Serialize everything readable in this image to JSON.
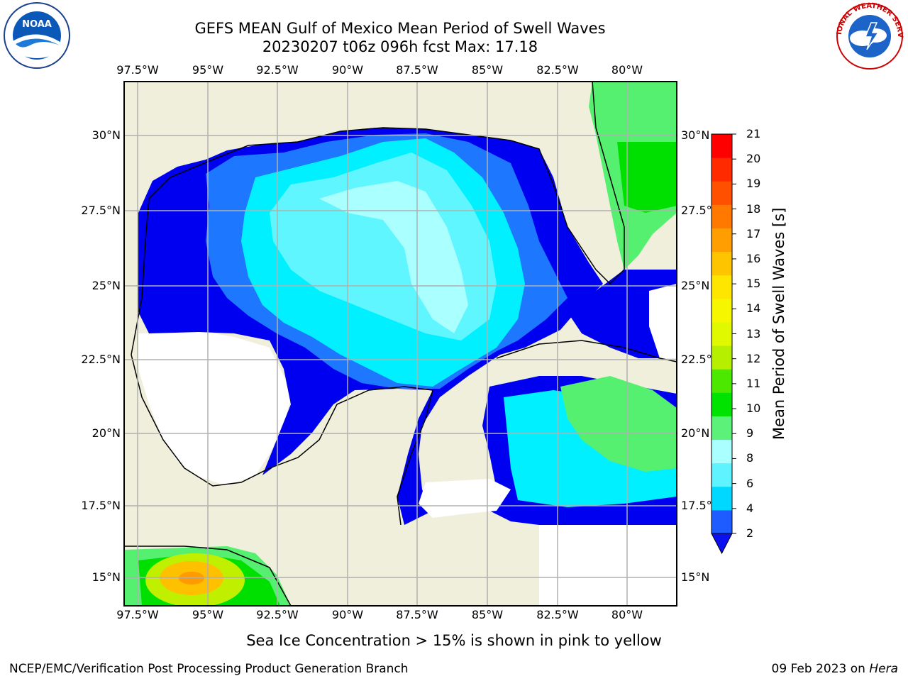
{
  "title": {
    "line1": "GEFS MEAN Gulf of Mexico Mean Period of Swell Waves",
    "line2": "20230207 t06z 096h fcst   Max: 17.18"
  },
  "axes": {
    "lon_labels": [
      "97.5°W",
      "95°W",
      "92.5°W",
      "90°W",
      "87.5°W",
      "85°W",
      "82.5°W",
      "80°W"
    ],
    "lat_labels": [
      "30°N",
      "27.5°N",
      "25°N",
      "22.5°N",
      "20°N",
      "17.5°N",
      "15°N"
    ],
    "lon_range": [
      -98,
      -78.3
    ],
    "lat_range": [
      14,
      31.7
    ]
  },
  "colorbar": {
    "label": "Mean Period of Swell Waves [s]",
    "ticks": [
      "21",
      "20",
      "19",
      "18",
      "17",
      "16",
      "15",
      "14",
      "13",
      "12",
      "11",
      "10",
      "9",
      "8",
      "6",
      "4",
      "2"
    ],
    "colors": [
      "#1e5cff",
      "#00d8ff",
      "#5ff3ff",
      "#aaffff",
      "#5cf27a",
      "#00e200",
      "#4ce800",
      "#b6f000",
      "#e0f800",
      "#f6f600",
      "#ffe600",
      "#ffc400",
      "#ff9e00",
      "#ff7800",
      "#ff5000",
      "#ff2a00",
      "#ff0000"
    ],
    "extend_color": "#0b10f0"
  },
  "map_colors": {
    "land": "#efefdc",
    "period_2_4": "#0000f0",
    "period_4_6": "#1e78ff",
    "period_6_8": "#00f0ff",
    "period_8_9": "#5ff6ff",
    "period_9_10": "#aaffff",
    "period_10_11": "#55f070",
    "period_11_12": "#00e000",
    "period_13": "#c0f000",
    "period_16": "#ffc000",
    "period_17": "#ff9a00",
    "no_data": "#ffffff",
    "grid": "#b0b0b0"
  },
  "caption": "Sea Ice Concentration > 15% is shown in pink to yellow",
  "footer": {
    "left": "NCEP/EMC/Verification Post Processing Product Generation Branch",
    "date": "09 Feb 2023 on ",
    "host": "Hera"
  },
  "logos": {
    "noaa": "NOAA",
    "nws_text": "NATIONAL WEATHER SERVICE"
  }
}
